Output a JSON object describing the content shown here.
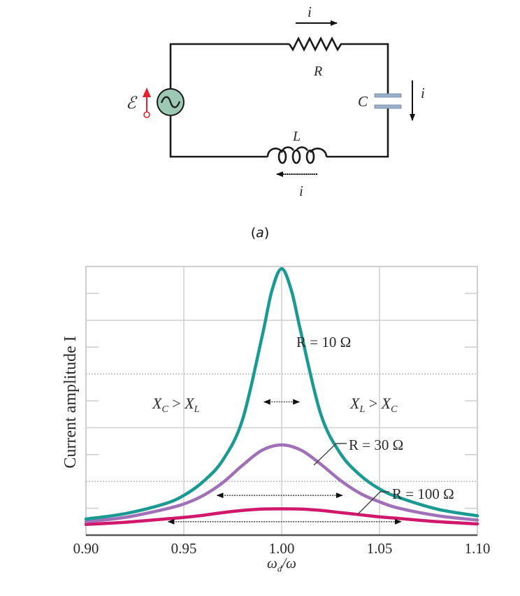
{
  "circuit": {
    "labels": {
      "emf": "ℰ",
      "resistor": "R",
      "capacitor": "C",
      "inductor": "L",
      "current_top": "i",
      "current_right": "i",
      "current_bottom": "i"
    },
    "colors": {
      "wire": "#1a1a1a",
      "source_fill": "#9cc8b4",
      "emf_arrow": "#e8202a",
      "capacitor_plate": "#9bb0c8"
    }
  },
  "caption": {
    "open": "(",
    "letter": "a",
    "close": ")"
  },
  "chart_data": {
    "type": "line",
    "title": "",
    "xlabel": "ωd/ω",
    "ylabel": "Current amplitude I",
    "xlim": [
      0.9,
      1.1
    ],
    "ylim": [
      0,
      5
    ],
    "x_ticks": [
      "0.90",
      "0.95",
      "1.00",
      "1.05",
      "1.10"
    ],
    "y_ticks": [],
    "grid": true,
    "series": [
      {
        "name": "R = 10 Ω",
        "color": "#1a9a92",
        "x": [
          0.9,
          0.92,
          0.94,
          0.95,
          0.96,
          0.97,
          0.98,
          0.99,
          0.995,
          1.0,
          1.005,
          1.01,
          1.02,
          1.03,
          1.04,
          1.05,
          1.06,
          1.08,
          1.1
        ],
        "values": [
          0.3,
          0.4,
          0.58,
          0.74,
          1.0,
          1.4,
          2.15,
          3.7,
          4.55,
          4.96,
          4.55,
          3.75,
          2.25,
          1.52,
          1.12,
          0.86,
          0.7,
          0.48,
          0.36
        ]
      },
      {
        "name": "R = 30 Ω",
        "color": "#a070b8",
        "x": [
          0.9,
          0.92,
          0.94,
          0.95,
          0.96,
          0.97,
          0.98,
          0.99,
          1.0,
          1.01,
          1.02,
          1.03,
          1.04,
          1.05,
          1.06,
          1.08,
          1.1
        ],
        "values": [
          0.25,
          0.33,
          0.48,
          0.58,
          0.74,
          0.98,
          1.3,
          1.58,
          1.68,
          1.58,
          1.32,
          1.02,
          0.78,
          0.62,
          0.5,
          0.36,
          0.28
        ]
      },
      {
        "name": "R = 100 Ω",
        "color": "#d0186c",
        "x": [
          0.9,
          0.92,
          0.94,
          0.95,
          0.96,
          0.97,
          0.98,
          0.99,
          1.0,
          1.01,
          1.02,
          1.03,
          1.04,
          1.05,
          1.06,
          1.08,
          1.1
        ],
        "values": [
          0.2,
          0.24,
          0.3,
          0.33,
          0.37,
          0.42,
          0.46,
          0.485,
          0.49,
          0.485,
          0.46,
          0.42,
          0.38,
          0.34,
          0.31,
          0.25,
          0.21
        ]
      }
    ],
    "annotations": [
      {
        "text": "R = 10 Ω",
        "x": 1.005,
        "y": 3.6
      },
      {
        "text": "R = 30 Ω",
        "x": 1.035,
        "y": 1.67
      },
      {
        "text": "R = 100 Ω",
        "x": 1.057,
        "y": 0.78
      },
      {
        "text": "XC > XL",
        "x": 0.955,
        "y": 2.5
      },
      {
        "text": "XL > XC",
        "x": 1.046,
        "y": 2.5
      }
    ],
    "half_width_arrows": [
      {
        "series": "R = 10 Ω",
        "x_from": 0.991,
        "x_to": 1.009,
        "y": 2.48
      },
      {
        "series": "R = 30 Ω",
        "x_from": 0.967,
        "x_to": 1.031,
        "y": 0.74
      },
      {
        "series": "R = 100 Ω",
        "x_from": 0.942,
        "x_to": 1.061,
        "y": 0.25
      }
    ]
  }
}
